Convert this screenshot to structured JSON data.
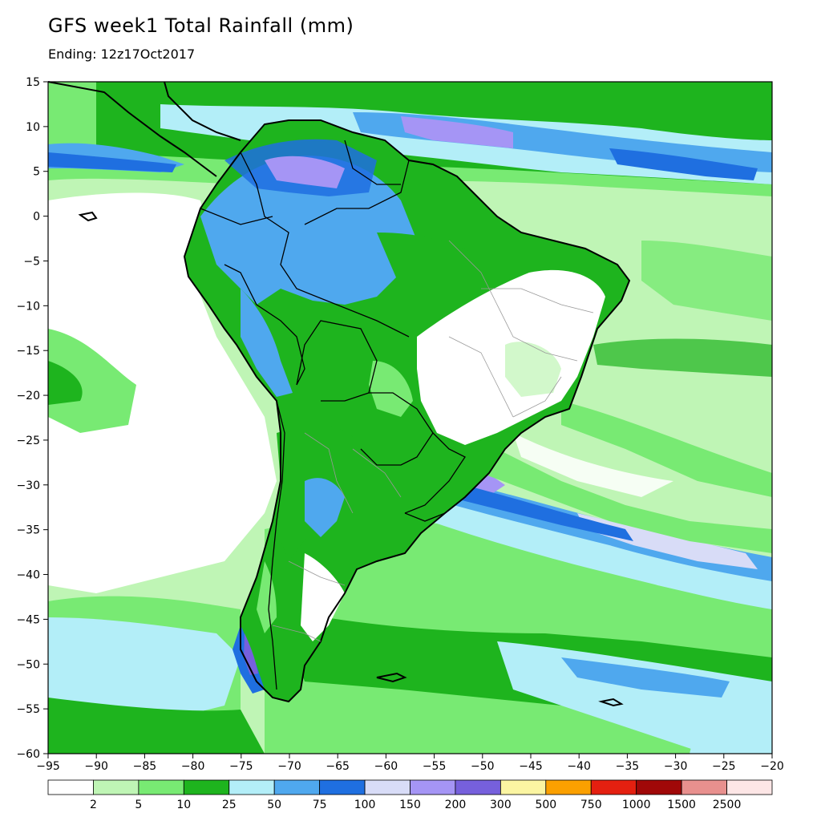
{
  "title": "GFS week1 Total Rainfall (mm)",
  "subtitle": "Ending: 12z17Oct2017",
  "map": {
    "lon_range": [
      -95,
      -20
    ],
    "lat_range": [
      -60,
      15
    ],
    "lon_ticks": [
      "−95",
      "−90",
      "−85",
      "−80",
      "−75",
      "−70",
      "−65",
      "−60",
      "−55",
      "−50",
      "−45",
      "−40",
      "−35",
      "−30",
      "−25",
      "−20"
    ],
    "lat_ticks": [
      "15",
      "10",
      "5",
      "0",
      "−5",
      "−10",
      "−15",
      "−20",
      "−25",
      "−30",
      "−35",
      "−40",
      "−45",
      "−50",
      "−55",
      "−60"
    ]
  },
  "colorbar": {
    "labels": [
      "2",
      "5",
      "10",
      "25",
      "50",
      "75",
      "100",
      "150",
      "200",
      "300",
      "500",
      "750",
      "1000",
      "1500",
      "2500"
    ],
    "colors": [
      "#ffffff",
      "#bff5b5",
      "#78ea73",
      "#1eb41e",
      "#b3eef8",
      "#4fa8ee",
      "#1f6fe0",
      "#d8dcf7",
      "#a595f5",
      "#7660dc",
      "#fbf5a2",
      "#fba000",
      "#e42010",
      "#a00808",
      "#e8908e",
      "#fde6e6"
    ]
  }
}
